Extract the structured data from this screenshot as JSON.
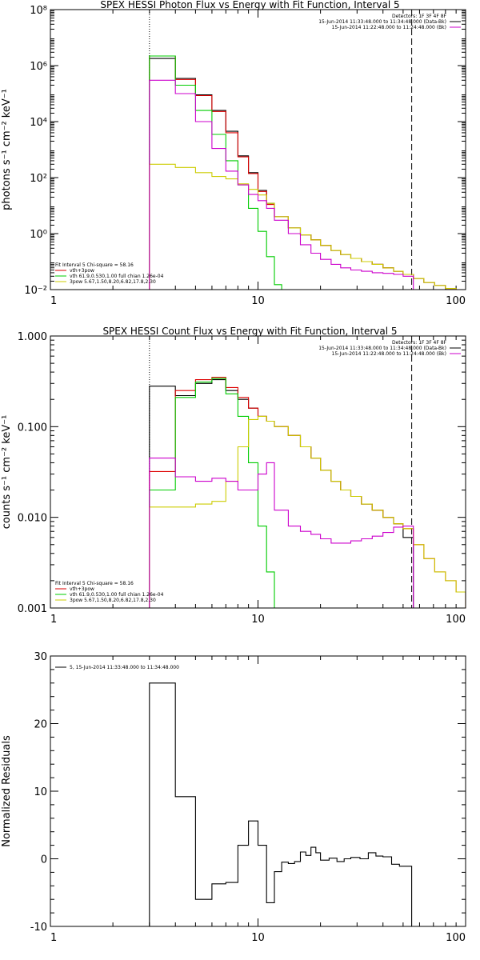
{
  "chart_data": [
    {
      "type": "line",
      "title": "SPEX HESSI Photon Flux vs Energy with Fit Function, Interval 5",
      "ylabel": "photons s⁻¹ cm⁻² keV⁻¹",
      "xlabel": "",
      "xscale": "log",
      "yscale": "log",
      "xlim": [
        1,
        100
      ],
      "ylim": [
        0.01,
        100000000
      ],
      "xticks": [
        {
          "v": 1,
          "label": "1"
        },
        {
          "v": 10,
          "label": "10"
        },
        {
          "v": 100,
          "label": "100"
        }
      ],
      "yticks": [
        {
          "v": 0.01,
          "label": "10⁻²"
        },
        {
          "v": 1,
          "label": "10⁰"
        },
        {
          "v": 100,
          "label": "10²"
        },
        {
          "v": 10000,
          "label": "10⁴"
        },
        {
          "v": 1000000,
          "label": "10⁶"
        },
        {
          "v": 100000000,
          "label": "10⁸"
        }
      ],
      "vlines": [
        {
          "x": 3,
          "style": "dotted"
        },
        {
          "x": 55,
          "style": "dashed"
        }
      ],
      "legend_right": [
        "Detectors: 1F 3F 4F 8F",
        "15-Jun-2014 11:33:48.000 to 11:34:48.000 (Data-Bk)",
        "15-Jun-2014 11:22:48.000 to 11:24:48.000 (Bk)"
      ],
      "legend_left": [
        {
          "text": "Fit Interval 5   Chi-square = 58.16",
          "color": ""
        },
        {
          "text": "vth+3pow",
          "color": "#dd0000"
        },
        {
          "text": "vth 61.9,0.530,1.00  full chian 1.26e-04",
          "color": "#00cc00"
        },
        {
          "text": "3pow 5.67,1.50,8.20,6.82,17.8,2.30",
          "color": "#cccc00"
        }
      ],
      "series": [
        {
          "name": "Data-Bk",
          "color": "#000000",
          "edges": [
            3,
            4,
            5,
            6,
            7,
            8,
            9,
            10,
            11,
            12,
            14,
            16,
            18,
            20,
            22.5,
            25,
            28,
            31.5,
            35.5,
            40,
            45,
            50,
            56,
            63,
            71,
            80,
            90,
            100
          ],
          "values": [
            1800000,
            350000,
            90000,
            25000,
            4500,
            600,
            150,
            35,
            12,
            4,
            1.6,
            0.9,
            0.6,
            0.38,
            0.25,
            0.18,
            0.13,
            0.1,
            0.08,
            0.06,
            0.045,
            0.035,
            0.025,
            0.018,
            0.014,
            0.011,
            0.009
          ]
        },
        {
          "name": "vth+3pow",
          "color": "#dd0000",
          "edges": [
            3,
            4,
            5,
            6,
            7,
            8,
            9,
            10,
            11,
            12,
            14,
            16,
            18,
            20,
            22.5,
            25,
            28,
            31.5,
            35.5,
            40,
            45,
            50,
            56,
            63,
            71,
            80,
            90,
            100
          ],
          "values": [
            2200000,
            320000,
            85000,
            23000,
            4000,
            550,
            140,
            32,
            11,
            4,
            1.6,
            0.9,
            0.6,
            0.38,
            0.25,
            0.18,
            0.13,
            0.1,
            0.08,
            0.06,
            0.045,
            0.035,
            0.025,
            0.018,
            0.014,
            0.011,
            0.009
          ]
        },
        {
          "name": "vth",
          "color": "#00cc00",
          "edges": [
            3,
            4,
            5,
            6,
            7,
            8,
            9,
            10,
            11,
            12,
            13
          ],
          "values": [
            2200000,
            200000,
            25000,
            3500,
            400,
            55,
            8,
            1.2,
            0.15,
            0.015
          ]
        },
        {
          "name": "3pow",
          "color": "#cccc00",
          "edges": [
            3,
            4,
            5,
            6,
            7,
            8,
            9,
            10,
            11,
            12,
            14,
            16,
            18,
            20,
            22.5,
            25,
            28,
            31.5,
            35.5,
            40,
            45,
            50,
            56,
            63,
            71,
            80,
            90,
            100
          ],
          "values": [
            300,
            230,
            150,
            110,
            90,
            60,
            38,
            24,
            12,
            4,
            1.6,
            0.9,
            0.6,
            0.38,
            0.25,
            0.18,
            0.13,
            0.1,
            0.08,
            0.06,
            0.045,
            0.035,
            0.025,
            0.018,
            0.014,
            0.011,
            0.009
          ]
        },
        {
          "name": "Bk",
          "color": "#cc00cc",
          "edges": [
            3,
            4,
            5,
            6,
            7,
            8,
            9,
            10,
            11,
            12,
            14,
            16,
            18,
            20,
            22.5,
            25,
            28,
            31.5,
            35.5,
            40,
            45,
            50,
            56
          ],
          "values": [
            300000,
            100000,
            10000,
            1100,
            170,
            55,
            25,
            15,
            8,
            3,
            1,
            0.4,
            0.2,
            0.12,
            0.08,
            0.06,
            0.05,
            0.045,
            0.04,
            0.038,
            0.035,
            0.03
          ]
        }
      ]
    },
    {
      "type": "line",
      "title": "SPEX HESSI Count Flux vs Energy with Fit Function, Interval 5",
      "ylabel": "counts s⁻¹ cm⁻² keV⁻¹",
      "xlabel": "",
      "xscale": "log",
      "yscale": "log",
      "xlim": [
        1,
        100
      ],
      "ylim": [
        0.001,
        1
      ],
      "xticks": [
        {
          "v": 1,
          "label": "1"
        },
        {
          "v": 10,
          "label": "10"
        },
        {
          "v": 100,
          "label": "100"
        }
      ],
      "yticks": [
        {
          "v": 0.001,
          "label": "0.001"
        },
        {
          "v": 0.01,
          "label": "0.010"
        },
        {
          "v": 0.1,
          "label": "0.100"
        },
        {
          "v": 1,
          "label": "1.000"
        }
      ],
      "vlines": [
        {
          "x": 3,
          "style": "dotted"
        },
        {
          "x": 55,
          "style": "dashed"
        }
      ],
      "legend_right": [
        "Detectors: 1F 3F 4F 8F",
        "15-Jun-2014 11:33:48.000 to 11:34:48.000 (Data-Bk)",
        "15-Jun-2014 11:22:48.000 to 11:24:48.000 (Bk)"
      ],
      "legend_left": [
        {
          "text": "Fit Interval 5   Chi-square = 58.16",
          "color": ""
        },
        {
          "text": "vth+3pow",
          "color": "#dd0000"
        },
        {
          "text": "vth 61.9,0.530,1.00  full chian 1.26e-04",
          "color": "#00cc00"
        },
        {
          "text": "3pow 5.67,1.50,8.20,6.82,17.8,2.30",
          "color": "#cccc00"
        }
      ],
      "series": [
        {
          "name": "Data-Bk",
          "color": "#000000",
          "edges": [
            3,
            4,
            5,
            6,
            7,
            8,
            9,
            10,
            11,
            12,
            14,
            16,
            18,
            20,
            22.5,
            25,
            28,
            31.5,
            35.5,
            40,
            45,
            50,
            56
          ],
          "values": [
            0.28,
            0.22,
            0.3,
            0.33,
            0.25,
            0.2,
            0.16,
            0.13,
            0.115,
            0.1,
            0.08,
            0.06,
            0.045,
            0.033,
            0.025,
            0.02,
            0.017,
            0.014,
            0.012,
            0.01,
            0.0085,
            0.006
          ]
        },
        {
          "name": "vth+3pow",
          "color": "#dd0000",
          "edges": [
            3,
            4,
            5,
            6,
            7,
            8,
            9,
            10,
            11,
            12,
            14,
            16,
            18,
            20,
            22.5,
            25,
            28,
            31.5,
            35.5,
            40,
            45,
            50,
            56,
            63,
            71,
            80,
            90,
            100
          ],
          "values": [
            0.032,
            0.25,
            0.33,
            0.35,
            0.27,
            0.21,
            0.16,
            0.13,
            0.115,
            0.1,
            0.08,
            0.06,
            0.045,
            0.033,
            0.025,
            0.02,
            0.017,
            0.014,
            0.012,
            0.01,
            0.0085,
            0.0075,
            0.005,
            0.0035,
            0.0025,
            0.002,
            0.0015
          ]
        },
        {
          "name": "vth",
          "color": "#00cc00",
          "edges": [
            3,
            4,
            5,
            6,
            7,
            8,
            9,
            10,
            11,
            12,
            13
          ],
          "values": [
            0.02,
            0.21,
            0.31,
            0.34,
            0.23,
            0.13,
            0.04,
            0.008,
            0.0025,
            0.001
          ]
        },
        {
          "name": "3pow",
          "color": "#cccc00",
          "edges": [
            3,
            4,
            5,
            6,
            7,
            8,
            9,
            10,
            11,
            12,
            14,
            16,
            18,
            20,
            22.5,
            25,
            28,
            31.5,
            35.5,
            40,
            45,
            50,
            56,
            63,
            71,
            80,
            90,
            100
          ],
          "values": [
            0.013,
            0.013,
            0.014,
            0.015,
            0.025,
            0.06,
            0.12,
            0.13,
            0.115,
            0.1,
            0.08,
            0.06,
            0.045,
            0.033,
            0.025,
            0.02,
            0.017,
            0.014,
            0.012,
            0.01,
            0.0085,
            0.0075,
            0.005,
            0.0035,
            0.0025,
            0.002,
            0.0015
          ]
        },
        {
          "name": "Bk",
          "color": "#cc00cc",
          "edges": [
            3,
            4,
            5,
            6,
            7,
            8,
            9,
            10,
            11,
            12,
            14,
            16,
            18,
            20,
            22.5,
            25,
            28,
            31.5,
            35.5,
            40,
            45,
            50,
            56
          ],
          "values": [
            0.045,
            0.028,
            0.025,
            0.027,
            0.025,
            0.02,
            0.02,
            0.03,
            0.04,
            0.012,
            0.008,
            0.007,
            0.0065,
            0.0058,
            0.0052,
            0.0052,
            0.0055,
            0.0058,
            0.0062,
            0.0068,
            0.0078,
            0.008
          ]
        }
      ]
    },
    {
      "type": "line",
      "title": "",
      "ylabel": "Normalized Residuals",
      "xlabel": "",
      "xscale": "log",
      "yscale": "linear",
      "xlim": [
        1,
        100
      ],
      "ylim": [
        -10,
        30
      ],
      "xticks": [
        {
          "v": 1,
          "label": "1"
        },
        {
          "v": 10,
          "label": "10"
        },
        {
          "v": 100,
          "label": "100"
        }
      ],
      "yticks": [
        {
          "v": -10,
          "label": "-10"
        },
        {
          "v": 0,
          "label": "0"
        },
        {
          "v": 10,
          "label": "10"
        },
        {
          "v": 20,
          "label": "20"
        },
        {
          "v": 30,
          "label": "30"
        }
      ],
      "vlines": [],
      "legend_right": [],
      "legend_left": [
        {
          "text": "5, 15-Jun-2014 11:33:48.000 to 11:34:48.000",
          "color": "#000000"
        }
      ],
      "series": [
        {
          "name": "5, 15-Jun-2014 11:33:48.000 to 11:34:48.000",
          "color": "#000000",
          "edges": [
            3,
            4,
            5,
            6,
            7,
            8,
            9,
            10,
            11,
            12,
            13,
            14,
            15,
            16,
            17,
            18,
            19,
            20,
            22,
            24,
            26,
            28,
            31,
            34,
            37,
            40,
            44,
            48,
            55
          ],
          "values": [
            26,
            9.2,
            -6,
            -3.7,
            -3.5,
            2,
            5.6,
            2,
            -6.5,
            -1.9,
            -0.5,
            -0.7,
            -0.4,
            1,
            0.5,
            1.7,
            0.9,
            -0.2,
            0.1,
            -0.4,
            0,
            0.2,
            0,
            0.9,
            0.4,
            0.3,
            -0.8,
            -1.1
          ]
        }
      ]
    }
  ]
}
